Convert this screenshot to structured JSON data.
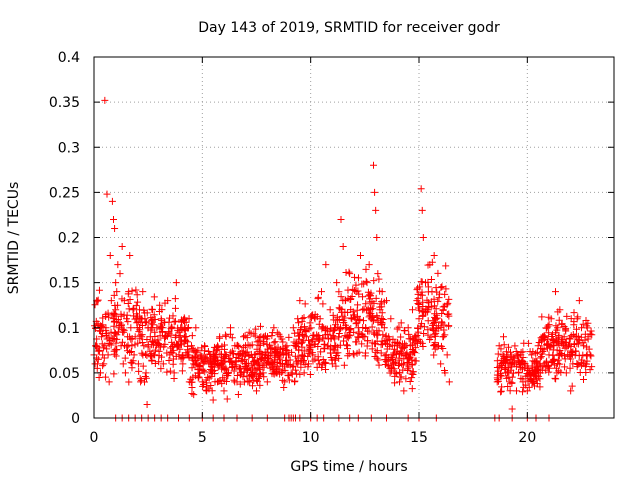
{
  "chart_data": {
    "type": "scatter",
    "title": "Day 143 of 2019, SRMTID for receiver godr",
    "xlabel": "GPS time / hours",
    "ylabel": "SRMTID / TECUs",
    "xlim": [
      0,
      24
    ],
    "ylim": [
      0,
      0.4
    ],
    "x_ticks": [
      0,
      5,
      10,
      15,
      20
    ],
    "x_tick_labels": [
      "0",
      "5",
      "10",
      "15",
      "20"
    ],
    "y_ticks": [
      0,
      0.05,
      0.1,
      0.15,
      0.2,
      0.25,
      0.3,
      0.35,
      0.4
    ],
    "y_tick_labels": [
      "0",
      "0.05",
      "0.1",
      "0.15",
      "0.2",
      "0.25",
      "0.3",
      "0.35",
      "0.4"
    ],
    "grid": true,
    "marker": "+",
    "color": "#ff0000",
    "series": [
      {
        "name": "SRMTID",
        "points": [
          [
            0.0,
            0.07
          ],
          [
            0.05,
            0.06
          ],
          [
            0.1,
            0.08
          ],
          [
            0.15,
            0.055
          ],
          [
            0.2,
            0.065
          ],
          [
            0.25,
            0.075
          ],
          [
            0.3,
            0.05
          ],
          [
            0.35,
            0.09
          ],
          [
            0.4,
            0.07
          ],
          [
            0.45,
            0.06
          ],
          [
            0.5,
            0.08
          ],
          [
            0.5,
            0.352
          ],
          [
            0.55,
            0.1
          ],
          [
            0.6,
            0.248
          ],
          [
            0.65,
            0.07
          ],
          [
            0.7,
            0.04
          ],
          [
            0.75,
            0.18
          ],
          [
            0.8,
            0.13
          ],
          [
            0.85,
            0.24
          ],
          [
            0.9,
            0.22
          ],
          [
            0.95,
            0.21
          ],
          [
            1.0,
            0.15
          ],
          [
            1.0,
            0.12
          ],
          [
            1.05,
            0.14
          ],
          [
            1.1,
            0.17
          ],
          [
            1.15,
            0.1
          ],
          [
            1.2,
            0.16
          ],
          [
            1.25,
            0.08
          ],
          [
            1.3,
            0.19
          ],
          [
            1.35,
            0.06
          ],
          [
            1.4,
            0.13
          ],
          [
            1.45,
            0.05
          ],
          [
            1.5,
            0.11
          ],
          [
            1.55,
            0.09
          ],
          [
            1.6,
            0.14
          ],
          [
            1.65,
            0.18
          ],
          [
            1.7,
            0.1
          ],
          [
            1.75,
            0.08
          ],
          [
            1.8,
            0.12
          ],
          [
            1.85,
            0.07
          ],
          [
            1.9,
            0.09
          ],
          [
            1.95,
            0.11
          ],
          [
            2.0,
            0.1
          ],
          [
            2.05,
            0.06
          ],
          [
            2.1,
            0.12
          ],
          [
            2.15,
            0.04
          ],
          [
            2.2,
            0.09
          ],
          [
            2.25,
            0.14
          ],
          [
            2.3,
            0.08
          ],
          [
            2.35,
            0.11
          ],
          [
            2.4,
            0.05
          ],
          [
            2.45,
            0.015
          ],
          [
            2.5,
            0.1
          ],
          [
            2.6,
            0.09
          ],
          [
            2.7,
            0.12
          ],
          [
            2.8,
            0.07
          ],
          [
            2.9,
            0.1
          ],
          [
            3.0,
            0.08
          ],
          [
            3.1,
            0.11
          ],
          [
            3.2,
            0.06
          ],
          [
            3.3,
            0.09
          ],
          [
            3.4,
            0.13
          ],
          [
            3.5,
            0.07
          ],
          [
            3.6,
            0.1
          ],
          [
            3.7,
            0.05
          ],
          [
            3.8,
            0.15
          ],
          [
            3.9,
            0.08
          ],
          [
            4.0,
            0.1
          ],
          [
            4.1,
            0.06
          ],
          [
            4.2,
            0.09
          ],
          [
            4.3,
            0.07
          ],
          [
            4.4,
            0.04
          ],
          [
            4.5,
            0.08
          ],
          [
            4.6,
            0.06
          ],
          [
            4.7,
            0.1
          ],
          [
            4.8,
            0.05
          ],
          [
            4.9,
            0.07
          ],
          [
            5.0,
            0.04
          ],
          [
            5.1,
            0.08
          ],
          [
            5.2,
            0.03
          ],
          [
            5.3,
            0.06
          ],
          [
            5.4,
            0.05
          ],
          [
            5.5,
            0.02
          ],
          [
            5.6,
            0.07
          ],
          [
            5.7,
            0.04
          ],
          [
            5.8,
            0.09
          ],
          [
            5.9,
            0.06
          ],
          [
            6.0,
            0.03
          ],
          [
            6.1,
            0.07
          ],
          [
            6.2,
            0.05
          ],
          [
            6.3,
            0.1
          ],
          [
            6.4,
            0.06
          ],
          [
            6.5,
            0.08
          ],
          [
            6.6,
            0.04
          ],
          [
            6.7,
            0.07
          ],
          [
            6.8,
            0.05
          ],
          [
            6.9,
            0.09
          ],
          [
            7.0,
            0.06
          ],
          [
            7.1,
            0.04
          ],
          [
            7.2,
            0.08
          ],
          [
            7.3,
            0.05
          ],
          [
            7.4,
            0.07
          ],
          [
            7.5,
            0.03
          ],
          [
            7.6,
            0.06
          ],
          [
            7.7,
            0.09
          ],
          [
            7.8,
            0.05
          ],
          [
            7.9,
            0.07
          ],
          [
            8.0,
            0.04
          ],
          [
            8.1,
            0.08
          ],
          [
            8.2,
            0.06
          ],
          [
            8.3,
            0.1
          ],
          [
            8.4,
            0.05
          ],
          [
            8.5,
            0.07
          ],
          [
            8.6,
            0.09
          ],
          [
            8.7,
            0.06
          ],
          [
            8.8,
            0.04
          ],
          [
            8.9,
            0.08
          ],
          [
            9.0,
            0.07
          ],
          [
            9.1,
            0.05
          ],
          [
            9.2,
            0.1
          ],
          [
            9.3,
            0.08
          ],
          [
            9.4,
            0.06
          ],
          [
            9.5,
            0.13
          ],
          [
            9.6,
            0.07
          ],
          [
            9.7,
            0.05
          ],
          [
            9.8,
            0.09
          ],
          [
            9.9,
            0.06
          ],
          [
            10.0,
            0.08
          ],
          [
            10.1,
            0.07
          ],
          [
            10.2,
            0.11
          ],
          [
            10.3,
            0.09
          ],
          [
            10.4,
            0.06
          ],
          [
            10.5,
            0.14
          ],
          [
            10.6,
            0.1
          ],
          [
            10.7,
            0.17
          ],
          [
            10.8,
            0.08
          ],
          [
            10.9,
            0.12
          ],
          [
            11.0,
            0.06
          ],
          [
            11.1,
            0.1
          ],
          [
            11.2,
            0.15
          ],
          [
            11.3,
            0.09
          ],
          [
            11.4,
            0.22
          ],
          [
            11.5,
            0.19
          ],
          [
            11.6,
            0.13
          ],
          [
            11.7,
            0.08
          ],
          [
            11.8,
            0.16
          ],
          [
            11.9,
            0.11
          ],
          [
            12.0,
            0.07
          ],
          [
            12.1,
            0.14
          ],
          [
            12.2,
            0.1
          ],
          [
            12.3,
            0.18
          ],
          [
            12.4,
            0.12
          ],
          [
            12.5,
            0.09
          ],
          [
            12.6,
            0.15
          ],
          [
            12.7,
            0.17
          ],
          [
            12.8,
            0.11
          ],
          [
            12.9,
            0.28
          ],
          [
            12.95,
            0.25
          ],
          [
            13.0,
            0.23
          ],
          [
            13.05,
            0.2
          ],
          [
            13.1,
            0.16
          ],
          [
            13.2,
            0.12
          ],
          [
            13.3,
            0.14
          ],
          [
            13.4,
            0.1
          ],
          [
            13.5,
            0.13
          ],
          [
            13.6,
            0.09
          ],
          [
            13.7,
            0.11
          ],
          [
            13.8,
            0.07
          ],
          [
            13.9,
            0.05
          ],
          [
            14.0,
            0.08
          ],
          [
            14.1,
            0.04
          ],
          [
            14.2,
            0.06
          ],
          [
            14.3,
            0.03
          ],
          [
            14.4,
            0.07
          ],
          [
            14.5,
            0.1
          ],
          [
            14.6,
            0.08
          ],
          [
            14.7,
            0.12
          ],
          [
            14.8,
            0.09
          ],
          [
            14.9,
            0.13
          ],
          [
            15.0,
            0.11
          ],
          [
            15.1,
            0.254
          ],
          [
            15.15,
            0.23
          ],
          [
            15.2,
            0.2
          ],
          [
            15.3,
            0.15
          ],
          [
            15.4,
            0.12
          ],
          [
            15.5,
            0.17
          ],
          [
            15.6,
            0.14
          ],
          [
            15.7,
            0.18
          ],
          [
            15.8,
            0.1
          ],
          [
            15.9,
            0.08
          ],
          [
            16.0,
            0.06
          ],
          [
            16.1,
            0.09
          ],
          [
            16.2,
            0.05
          ],
          [
            16.3,
            0.07
          ],
          [
            16.4,
            0.04
          ],
          [
            18.7,
            0.08
          ],
          [
            18.8,
            0.06
          ],
          [
            18.9,
            0.09
          ],
          [
            19.0,
            0.05
          ],
          [
            19.1,
            0.07
          ],
          [
            19.2,
            0.04
          ],
          [
            19.3,
            0.01
          ],
          [
            19.4,
            0.06
          ],
          [
            19.5,
            0.03
          ],
          [
            19.6,
            0.05
          ],
          [
            19.7,
            0.07
          ],
          [
            19.8,
            0.04
          ],
          [
            19.9,
            0.06
          ],
          [
            20.0,
            0.03
          ],
          [
            20.1,
            0.05
          ],
          [
            20.2,
            0.07
          ],
          [
            20.3,
            0.04
          ],
          [
            20.4,
            0.06
          ],
          [
            20.5,
            0.08
          ],
          [
            20.6,
            0.05
          ],
          [
            20.7,
            0.09
          ],
          [
            20.8,
            0.06
          ],
          [
            20.9,
            0.1
          ],
          [
            21.0,
            0.07
          ],
          [
            21.1,
            0.11
          ],
          [
            21.2,
            0.08
          ],
          [
            21.3,
            0.14
          ],
          [
            21.4,
            0.1
          ],
          [
            21.5,
            0.12
          ],
          [
            21.6,
            0.07
          ],
          [
            21.7,
            0.09
          ],
          [
            21.8,
            0.05
          ],
          [
            21.9,
            0.08
          ],
          [
            22.0,
            0.03
          ],
          [
            22.1,
            0.06
          ],
          [
            22.2,
            0.09
          ],
          [
            22.3,
            0.11
          ],
          [
            22.4,
            0.13
          ],
          [
            22.5,
            0.1
          ],
          [
            22.6,
            0.08
          ],
          [
            22.7,
            0.06
          ],
          [
            22.8,
            0.09
          ],
          [
            22.9,
            0.07
          ]
        ]
      }
    ],
    "zero_markers": [
      1.0,
      1.3,
      1.6,
      1.9,
      2.2,
      2.5,
      2.8,
      3.1,
      3.4,
      3.9,
      4.4,
      5.0,
      5.5,
      6.0,
      6.6,
      7.3,
      8.0,
      8.8,
      9.0,
      9.1,
      9.2,
      9.3,
      9.5,
      10.0,
      10.3,
      10.6,
      11.3,
      11.8,
      12.2,
      12.8,
      13.5,
      14.5,
      15.0,
      15.8,
      18.5,
      18.7,
      19.3,
      20.0,
      20.4,
      21.0
    ],
    "bands": [
      {
        "x_start": 0.0,
        "x_end": 2.6,
        "y_center": 0.095,
        "y_spread": 0.045,
        "count": 160
      },
      {
        "x_start": 2.6,
        "x_end": 4.4,
        "y_center": 0.09,
        "y_spread": 0.035,
        "count": 140
      },
      {
        "x_start": 4.4,
        "x_end": 6.3,
        "y_center": 0.058,
        "y_spread": 0.028,
        "count": 150
      },
      {
        "x_start": 6.3,
        "x_end": 9.3,
        "y_center": 0.065,
        "y_spread": 0.028,
        "count": 230
      },
      {
        "x_start": 9.3,
        "x_end": 11.3,
        "y_center": 0.085,
        "y_spread": 0.035,
        "count": 150
      },
      {
        "x_start": 11.3,
        "x_end": 13.4,
        "y_center": 0.11,
        "y_spread": 0.045,
        "count": 170
      },
      {
        "x_start": 13.4,
        "x_end": 14.9,
        "y_center": 0.07,
        "y_spread": 0.03,
        "count": 120
      },
      {
        "x_start": 14.9,
        "x_end": 16.4,
        "y_center": 0.115,
        "y_spread": 0.045,
        "count": 120
      },
      {
        "x_start": 18.6,
        "x_end": 20.6,
        "y_center": 0.055,
        "y_spread": 0.022,
        "count": 150
      },
      {
        "x_start": 20.6,
        "x_end": 23.0,
        "y_center": 0.08,
        "y_spread": 0.032,
        "count": 170
      }
    ]
  }
}
